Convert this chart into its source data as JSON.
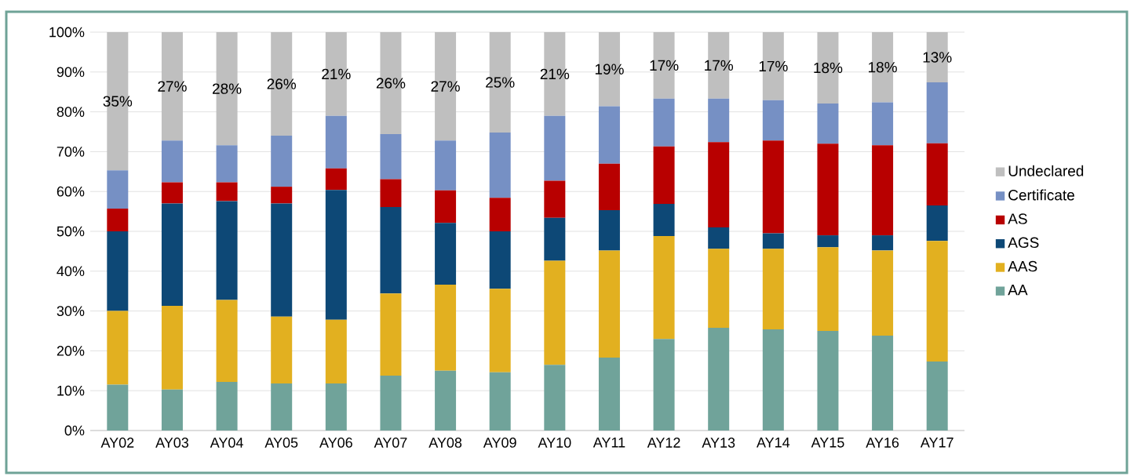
{
  "chart_data": {
    "type": "bar",
    "stacked": true,
    "categories": [
      "AY02",
      "AY03",
      "AY04",
      "AY05",
      "AY06",
      "AY07",
      "AY08",
      "AY09",
      "AY10",
      "AY11",
      "AY12",
      "AY13",
      "AY14",
      "AY15",
      "AY16",
      "AY17"
    ],
    "series": [
      {
        "name": "AA",
        "color": "#70a39a",
        "values": [
          11.5,
          10.3,
          12.2,
          11.8,
          11.8,
          13.8,
          15,
          14.6,
          16.5,
          18.3,
          23,
          25.8,
          25.4,
          25,
          23.8,
          17.3
        ]
      },
      {
        "name": "AAS",
        "color": "#e2b020",
        "values": [
          18.5,
          21,
          20.6,
          16.8,
          16,
          20.6,
          21.6,
          21,
          26.1,
          26.9,
          25.8,
          19.8,
          20.2,
          21,
          21.4,
          30.3
        ]
      },
      {
        "name": "AGS",
        "color": "#0d4876",
        "values": [
          20,
          25.7,
          24.8,
          28.4,
          32.6,
          21.7,
          15.5,
          14.4,
          10.8,
          10.1,
          8.1,
          5.4,
          3.9,
          3,
          3.8,
          8.9
        ]
      },
      {
        "name": "AS",
        "color": "#b80000",
        "values": [
          5.7,
          5.3,
          4.7,
          4.2,
          5.4,
          7,
          8.2,
          8.4,
          9.3,
          11.7,
          14.4,
          21.4,
          23.3,
          23,
          22.6,
          15.6
        ]
      },
      {
        "name": "Certificate",
        "color": "#7690c4",
        "values": [
          9.6,
          10.5,
          9.3,
          12.8,
          13.2,
          11.3,
          12.5,
          16.4,
          16.3,
          14.4,
          12,
          10.9,
          10.1,
          10.1,
          10.8,
          15.3
        ]
      },
      {
        "name": "Undeclared",
        "color": "#bfbfbf",
        "values": [
          34.7,
          27.2,
          28.4,
          26,
          21,
          25.6,
          27.2,
          25.2,
          21,
          18.6,
          16.7,
          16.7,
          17.1,
          17.9,
          17.6,
          12.6
        ],
        "value_labels": [
          "35%",
          "27%",
          "28%",
          "26%",
          "21%",
          "26%",
          "27%",
          "25%",
          "21%",
          "19%",
          "17%",
          "17%",
          "17%",
          "18%",
          "18%",
          "13%"
        ]
      }
    ],
    "ylim": [
      0,
      100
    ],
    "yticks": [
      {
        "value": 0,
        "label": "0%"
      },
      {
        "value": 10,
        "label": "10%"
      },
      {
        "value": 20,
        "label": "20%"
      },
      {
        "value": 30,
        "label": "30%"
      },
      {
        "value": 40,
        "label": "40%"
      },
      {
        "value": 50,
        "label": "50%"
      },
      {
        "value": 60,
        "label": "60%"
      },
      {
        "value": 70,
        "label": "70%"
      },
      {
        "value": 80,
        "label": "80%"
      },
      {
        "value": 90,
        "label": "90%"
      },
      {
        "value": 100,
        "label": "100%"
      }
    ],
    "grid": "y",
    "legend": "right"
  }
}
